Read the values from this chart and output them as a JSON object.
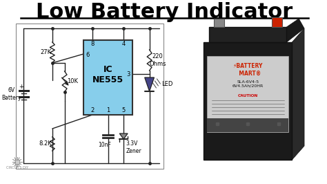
{
  "title": "Low Battery Indicator",
  "title_fontsize": 22,
  "bg_color": "#ffffff",
  "ic_color": "#87CEEB",
  "ic_label": "IC\nNE555",
  "circuit_bg": "#f0f0f0",
  "circuit_border": "#888888",
  "wire_color": "#222222",
  "watermark": "CIRCUITS DIY",
  "battery_body": "#1c1c1c",
  "battery_label_bg": "#2a2a2a"
}
